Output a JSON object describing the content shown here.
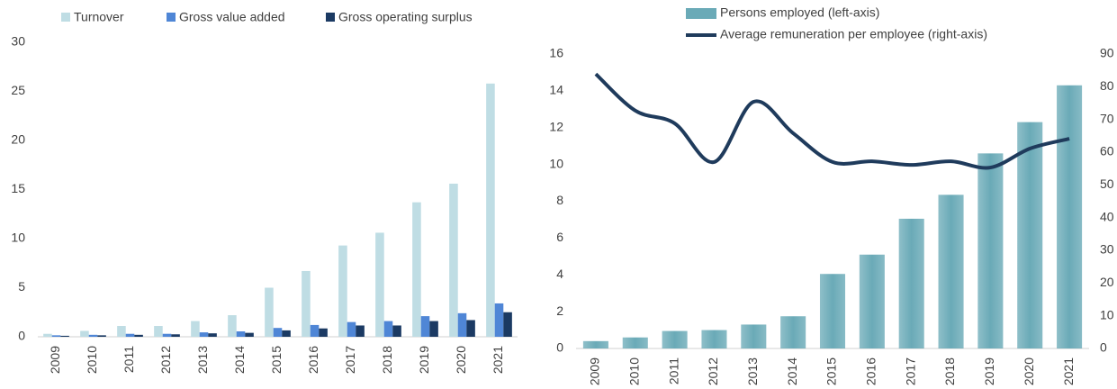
{
  "chart_data": [
    {
      "type": "bar",
      "categories": [
        "2009",
        "2010",
        "2011",
        "2012",
        "2013",
        "2014",
        "2015",
        "2016",
        "2017",
        "2018",
        "2019",
        "2020",
        "2021"
      ],
      "series": [
        {
          "name": "Turnover",
          "color": "#bfdde4",
          "values": [
            0.3,
            0.6,
            1.1,
            1.1,
            1.6,
            2.2,
            5.0,
            6.7,
            9.3,
            10.6,
            13.7,
            15.6,
            25.8
          ]
        },
        {
          "name": "Gross value added",
          "color": "#4f86d6",
          "values": [
            0.15,
            0.2,
            0.3,
            0.3,
            0.45,
            0.55,
            0.9,
            1.2,
            1.5,
            1.6,
            2.1,
            2.4,
            3.4
          ]
        },
        {
          "name": "Gross operating surplus",
          "color": "#1b3a63",
          "values": [
            0.1,
            0.15,
            0.2,
            0.25,
            0.35,
            0.4,
            0.65,
            0.85,
            1.15,
            1.15,
            1.6,
            1.7,
            2.5
          ]
        }
      ],
      "ylim": [
        0,
        30
      ],
      "yticks": [
        0,
        5,
        10,
        15,
        20,
        25,
        30
      ],
      "grid": false
    },
    {
      "type": "combo",
      "categories": [
        "2009",
        "2010",
        "2011",
        "2012",
        "2013",
        "2014",
        "2015",
        "2016",
        "2017",
        "2018",
        "2019",
        "2020",
        "2021"
      ],
      "series": [
        {
          "name": "Persons employed (left-axis)",
          "color": "#6aaab7",
          "values": [
            0.4,
            0.6,
            0.95,
            1.0,
            1.3,
            1.75,
            4.05,
            5.1,
            7.05,
            8.35,
            10.6,
            12.3,
            14.3
          ]
        },
        {
          "name": "Average remuneration per employee (right-axis)",
          "color": "#1f3b5c",
          "axis": "y2",
          "values": [
            83.9,
            72.7,
            68.8,
            57,
            75.4,
            65.8,
            57,
            57.2,
            56.1,
            57.2,
            55.3,
            61.1,
            64.1
          ]
        }
      ],
      "ylim": [
        0,
        16
      ],
      "yticks": [
        0,
        2,
        4,
        6,
        8,
        10,
        12,
        14,
        16
      ],
      "y2lim": [
        0,
        90
      ],
      "y2ticks": [
        0,
        10,
        20,
        30,
        40,
        50,
        60,
        70,
        80,
        90
      ],
      "grid": false
    }
  ]
}
